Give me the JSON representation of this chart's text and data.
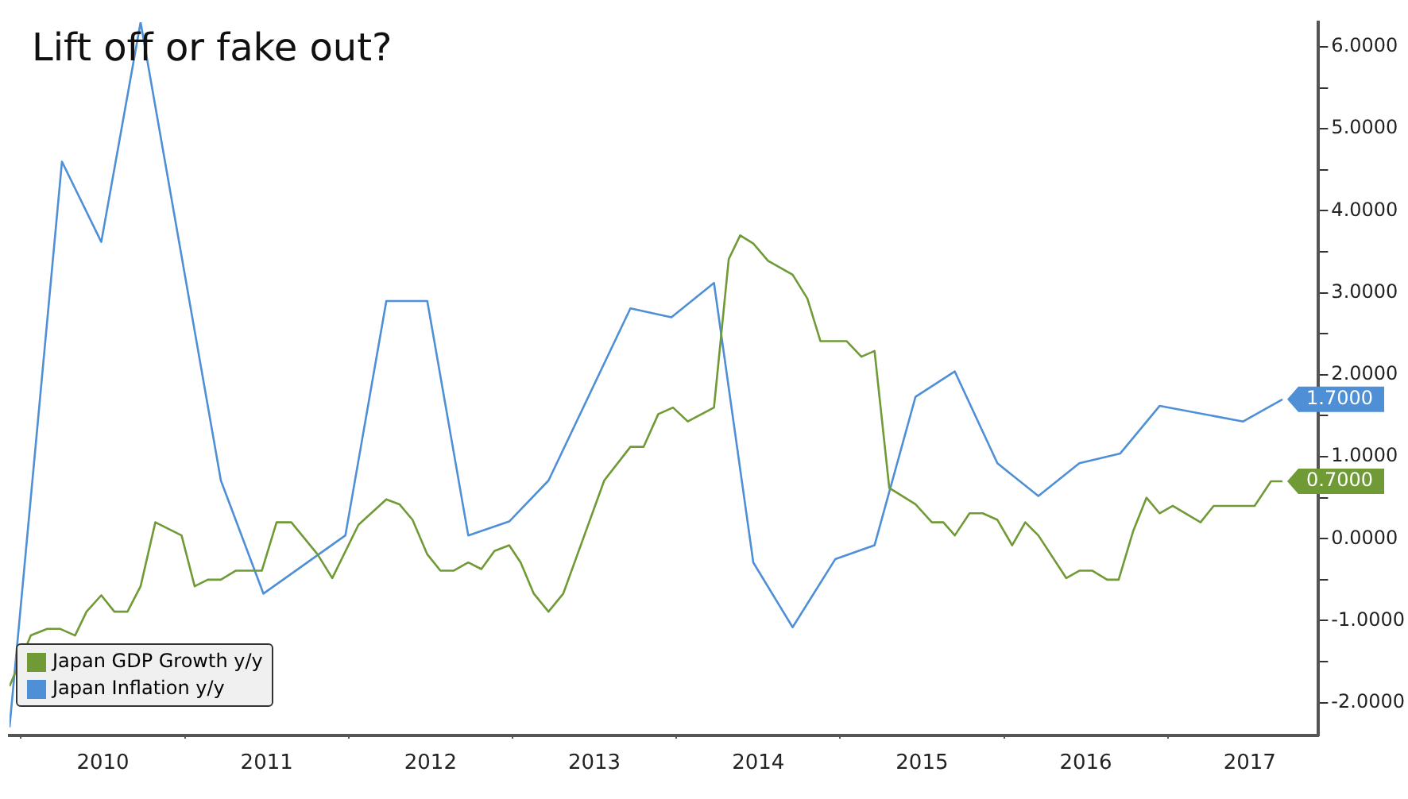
{
  "chart_data": {
    "type": "line",
    "title": "Lift off or fake out?",
    "xlim": [
      2009.93,
      2017.92
    ],
    "xticks": [
      {
        "value": 2010,
        "label": null
      },
      {
        "value": 2010.5,
        "label": "2010"
      },
      {
        "value": 2011,
        "label": null
      },
      {
        "value": 2011.5,
        "label": "2011"
      },
      {
        "value": 2012,
        "label": null
      },
      {
        "value": 2012.5,
        "label": "2012"
      },
      {
        "value": 2013,
        "label": null
      },
      {
        "value": 2013.5,
        "label": "2013"
      },
      {
        "value": 2014,
        "label": null
      },
      {
        "value": 2014.5,
        "label": "2014"
      },
      {
        "value": 2015,
        "label": null
      },
      {
        "value": 2015.5,
        "label": "2015"
      },
      {
        "value": 2016,
        "label": null
      },
      {
        "value": 2016.5,
        "label": "2016"
      },
      {
        "value": 2017,
        "label": null
      },
      {
        "value": 2017.5,
        "label": "2017"
      }
    ],
    "ylim": [
      -2.4,
      6.3
    ],
    "yticks": [
      {
        "value": -2,
        "label": "-2.0000"
      },
      {
        "value": -1.5,
        "label": null
      },
      {
        "value": -1,
        "label": "-1.0000"
      },
      {
        "value": -0.5,
        "label": null
      },
      {
        "value": 0,
        "label": "0.0000"
      },
      {
        "value": 0.5,
        "label": null
      },
      {
        "value": 1,
        "label": "1.0000"
      },
      {
        "value": 1.5,
        "label": null
      },
      {
        "value": 2,
        "label": "2.0000"
      },
      {
        "value": 2.5,
        "label": null
      },
      {
        "value": 3,
        "label": "3.0000"
      },
      {
        "value": 3.5,
        "label": null
      },
      {
        "value": 4,
        "label": "4.0000"
      },
      {
        "value": 4.5,
        "label": null
      },
      {
        "value": 5,
        "label": "5.0000"
      },
      {
        "value": 5.5,
        "label": null
      },
      {
        "value": 6,
        "label": "6.0000"
      }
    ],
    "grid": false,
    "legend": "bottom left",
    "marker": "none",
    "line_style": "solid",
    "series": [
      {
        "name": "Japan GDP Growth y/y",
        "color": "#6f9a35",
        "x": [
          2009.93,
          2010.06,
          2010.16,
          2010.24,
          2010.33,
          2010.4,
          2010.49,
          2010.57,
          2010.65,
          2010.73,
          2010.82,
          2010.98,
          2011.06,
          2011.14,
          2011.22,
          2011.31,
          2011.47,
          2011.56,
          2011.65,
          2011.81,
          2011.9,
          2012.06,
          2012.23,
          2012.31,
          2012.39,
          2012.48,
          2012.56,
          2012.64,
          2012.73,
          2012.81,
          2012.89,
          2012.98,
          2013.05,
          2013.13,
          2013.22,
          2013.31,
          2013.56,
          2013.72,
          2013.8,
          2013.89,
          2013.98,
          2014.07,
          2014.23,
          2014.32,
          2014.39,
          2014.47,
          2014.56,
          2014.71,
          2014.8,
          2014.88,
          2015.04,
          2015.13,
          2015.21,
          2015.3,
          2015.46,
          2015.56,
          2015.63,
          2015.7,
          2015.79,
          2015.87,
          2015.96,
          2016.05,
          2016.13,
          2016.21,
          2016.38,
          2016.46,
          2016.54,
          2016.63,
          2016.7,
          2016.79,
          2016.87,
          2016.95,
          2017.03,
          2017.2,
          2017.28,
          2017.53,
          2017.63,
          2017.7
        ],
        "values": [
          -1.8,
          -1.18,
          -1.1,
          -1.1,
          -1.18,
          -0.89,
          -0.69,
          -0.89,
          -0.89,
          -0.58,
          0.2,
          0.04,
          -0.58,
          -0.5,
          -0.5,
          -0.39,
          -0.39,
          0.2,
          0.2,
          -0.19,
          -0.48,
          0.17,
          0.48,
          0.42,
          0.23,
          -0.19,
          -0.39,
          -0.39,
          -0.29,
          -0.37,
          -0.15,
          -0.08,
          -0.29,
          -0.67,
          -0.89,
          -0.67,
          0.71,
          1.12,
          1.12,
          1.52,
          1.6,
          1.43,
          1.6,
          3.41,
          3.7,
          3.6,
          3.39,
          3.22,
          2.93,
          2.41,
          2.41,
          2.22,
          2.29,
          0.62,
          0.42,
          0.2,
          0.2,
          0.04,
          0.31,
          0.31,
          0.23,
          -0.08,
          0.2,
          0.04,
          -0.48,
          -0.39,
          -0.39,
          -0.5,
          -0.5,
          0.1,
          0.5,
          0.31,
          0.4,
          0.2,
          0.4,
          0.4,
          0.7,
          0.7
        ],
        "value_labels": [
          null,
          null,
          null,
          null,
          null,
          null,
          null,
          null,
          null,
          null,
          null,
          null,
          null,
          null,
          null,
          null,
          null,
          null,
          null,
          null,
          null,
          null,
          null,
          null,
          null,
          null,
          null,
          null,
          null,
          null,
          null,
          null,
          null,
          null,
          null,
          null,
          null,
          null,
          null,
          null,
          null,
          null,
          null,
          null,
          null,
          null,
          null,
          null,
          null,
          null,
          null,
          null,
          null,
          null,
          null,
          null,
          null,
          null,
          null,
          null,
          null,
          null,
          null,
          null,
          null,
          null,
          null,
          null,
          null,
          null,
          null,
          null,
          null,
          null,
          null,
          null,
          null,
          "0.7000"
        ]
      },
      {
        "name": "Japan Inflation y/y",
        "color": "#4f8fd6",
        "x": [
          2009.93,
          2010.25,
          2010.49,
          2010.73,
          2011.22,
          2011.48,
          2011.98,
          2012.23,
          2012.48,
          2012.73,
          2012.98,
          2013.22,
          2013.72,
          2013.97,
          2014.23,
          2014.47,
          2014.71,
          2014.97,
          2015.21,
          2015.46,
          2015.7,
          2015.96,
          2016.21,
          2016.46,
          2016.71,
          2016.95,
          2017.46,
          2017.7
        ],
        "values": [
          -2.3,
          4.6,
          3.62,
          6.3,
          0.71,
          -0.67,
          0.04,
          2.9,
          2.9,
          0.04,
          0.21,
          0.71,
          2.81,
          2.7,
          3.12,
          -0.29,
          -1.08,
          -0.25,
          -0.08,
          1.73,
          2.04,
          0.92,
          0.52,
          0.92,
          1.04,
          1.62,
          1.43,
          1.7
        ],
        "value_labels": [
          null,
          null,
          null,
          null,
          null,
          null,
          null,
          null,
          null,
          null,
          null,
          null,
          null,
          null,
          null,
          null,
          null,
          null,
          null,
          null,
          null,
          null,
          null,
          null,
          null,
          null,
          null,
          "1.7000"
        ]
      }
    ]
  }
}
